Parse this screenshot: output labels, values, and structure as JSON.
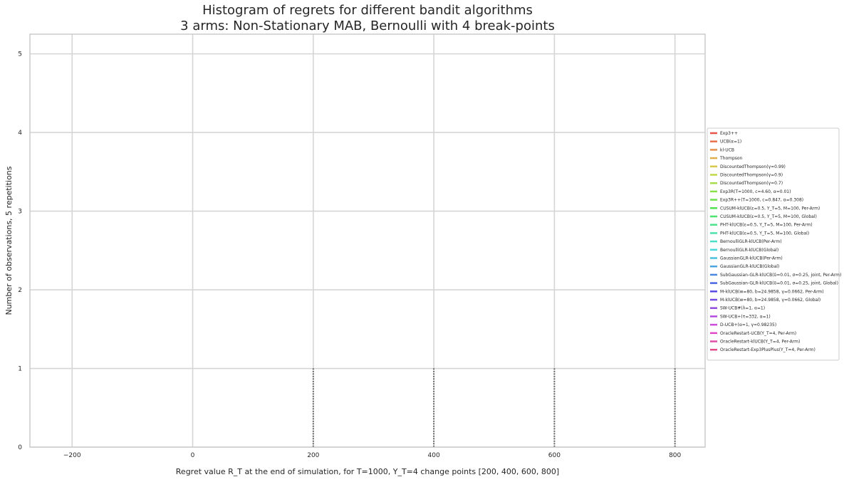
{
  "chart_data": {
    "type": "bar",
    "title": "Histogram of regrets for different bandit algorithms",
    "subtitle": "3 arms: Non-Stationary MAB, Bernoulli with 4 break-points",
    "xlabel": "Regret value R_T at the end of simulation, for T=1000, Υ_T=4 change points [200, 400, 600, 800]",
    "ylabel": "Number of observations, 5 repetitions",
    "xlim": [
      -270,
      850
    ],
    "ylim": [
      0,
      5.25
    ],
    "x_ticks": [
      -200,
      0,
      200,
      400,
      600,
      800
    ],
    "x_tick_labels": [
      "−200",
      "0",
      "200",
      "400",
      "600",
      "800"
    ],
    "y_ticks": [
      0,
      1,
      2,
      3,
      4,
      5
    ],
    "y_tick_labels": [
      "0",
      "1",
      "2",
      "3",
      "4",
      "5"
    ],
    "grid": true,
    "legend_position": "right",
    "vertical_markers": [
      200,
      400,
      600,
      800
    ],
    "series": [
      {
        "name": "Exp3++",
        "color": "#e8534a"
      },
      {
        "name": "UCB(α=1)",
        "color": "#e8704a"
      },
      {
        "name": "kl-UCB",
        "color": "#e8904a"
      },
      {
        "name": "Thompson",
        "color": "#e0ad4a"
      },
      {
        "name": "DiscountedThompson(γ=0.99)",
        "color": "#d7c84a"
      },
      {
        "name": "DiscountedThompson(γ=0.9)",
        "color": "#c2d74a"
      },
      {
        "name": "DiscountedThompson(γ=0.7)",
        "color": "#a6dc4a"
      },
      {
        "name": "Exp3R(T=1000, c=4.60, α=0.01)",
        "color": "#88e04a"
      },
      {
        "name": "Exp3R++(T=1000, c=0.847, α=0.308)",
        "color": "#6be24a"
      },
      {
        "name": "CUSUM-klUCB(ε=0.5, Υ_T=5, M=100, Per-Arm)",
        "color": "#4de34f"
      },
      {
        "name": "CUSUM-klUCB(ε=0.5, Υ_T=5, M=100, Global)",
        "color": "#4ae46e"
      },
      {
        "name": "PHT-klUCB(ε=0.5, Υ_T=5, M=100, Per-Arm)",
        "color": "#4ae38c"
      },
      {
        "name": "PHT-klUCB(ε=0.5, Υ_T=5, M=100, Global)",
        "color": "#4ae1aa"
      },
      {
        "name": "BernoulliGLR-klUCB(Per-Arm)",
        "color": "#4adfc6"
      },
      {
        "name": "BernoulliGLR-klUCB(Global)",
        "color": "#4ad7dc"
      },
      {
        "name": "GaussianGLR-klUCB(Per-Arm)",
        "color": "#4abfde"
      },
      {
        "name": "GaussianGLR-klUCB(Global)",
        "color": "#4aa4e0"
      },
      {
        "name": "SubGaussian-GLR-klUCB(δ=0.01, σ=0.25, joint, Per-Arm)",
        "color": "#4a86e2"
      },
      {
        "name": "SubGaussian-GLR-klUCB(δ=0.01, σ=0.25, joint, Global)",
        "color": "#4a67e3"
      },
      {
        "name": "M-klUCB(w=80, b=24.9858, γ=0.0662, Per-Arm)",
        "color": "#584ae3"
      },
      {
        "name": "M-klUCB(w=80, b=24.9858, γ=0.0662, Global)",
        "color": "#754ae2"
      },
      {
        "name": "SW-UCB#(λ=1, α=1)",
        "color": "#944ae1"
      },
      {
        "name": "SW-UCB+(τ=332, α=1)",
        "color": "#b24adf"
      },
      {
        "name": "D-UCB+(α=1, γ=0.98235)",
        "color": "#cf4adc"
      },
      {
        "name": "OracleRestart-UCB(Υ_T=4, Per-Arm)",
        "color": "#e04ac8"
      },
      {
        "name": "OracleRestart-klUCB(Υ_T=4, Per-Arm)",
        "color": "#e24aa8"
      },
      {
        "name": "OracleRestart-Exp3PlusPlus(Υ_T=4, Per-Arm)",
        "color": "#e34a88"
      }
    ]
  }
}
